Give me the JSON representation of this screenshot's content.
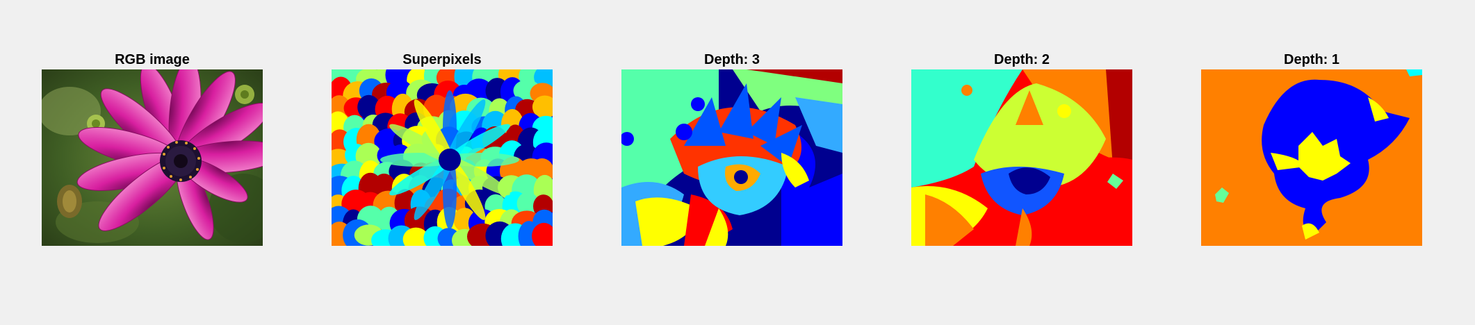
{
  "panels": [
    {
      "title": "RGB image"
    },
    {
      "title": "Superpixels"
    },
    {
      "title": "Depth: 3"
    },
    {
      "title": "Depth: 2"
    },
    {
      "title": "Depth: 1"
    }
  ],
  "colors": {
    "background": "#f0f0f0",
    "flower_magenta": "#d81fa0",
    "foliage_green": "#4d6b2a",
    "jet_dark_blue": "#00008f",
    "jet_blue": "#0000ff",
    "jet_cyan": "#00ffff",
    "jet_green": "#7fff7f",
    "jet_yellow": "#ffff00",
    "jet_orange": "#ff8000",
    "jet_red": "#ff0000",
    "jet_dark_red": "#b30000"
  }
}
